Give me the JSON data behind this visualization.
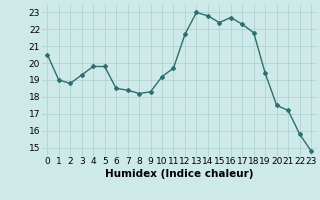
{
  "x": [
    0,
    1,
    2,
    3,
    4,
    5,
    6,
    7,
    8,
    9,
    10,
    11,
    12,
    13,
    14,
    15,
    16,
    17,
    18,
    19,
    20,
    21,
    22,
    23
  ],
  "y": [
    20.5,
    19.0,
    18.8,
    19.3,
    19.8,
    19.8,
    18.5,
    18.4,
    18.2,
    18.3,
    19.2,
    19.7,
    21.7,
    23.0,
    22.8,
    22.4,
    22.7,
    22.3,
    21.8,
    19.4,
    17.5,
    17.2,
    15.8,
    14.8
  ],
  "line_color": "#2d6e6e",
  "marker": "D",
  "marker_size": 2,
  "bg_color": "#ceeae8",
  "grid_color": "#afd4d2",
  "xlabel": "Humidex (Indice chaleur)",
  "xlabel_fontsize": 7.5,
  "tick_fontsize": 6.5,
  "xlim": [
    -0.5,
    23.5
  ],
  "ylim": [
    14.5,
    23.5
  ],
  "yticks": [
    15,
    16,
    17,
    18,
    19,
    20,
    21,
    22,
    23
  ],
  "xticks": [
    0,
    1,
    2,
    3,
    4,
    5,
    6,
    7,
    8,
    9,
    10,
    11,
    12,
    13,
    14,
    15,
    16,
    17,
    18,
    19,
    20,
    21,
    22,
    23
  ]
}
